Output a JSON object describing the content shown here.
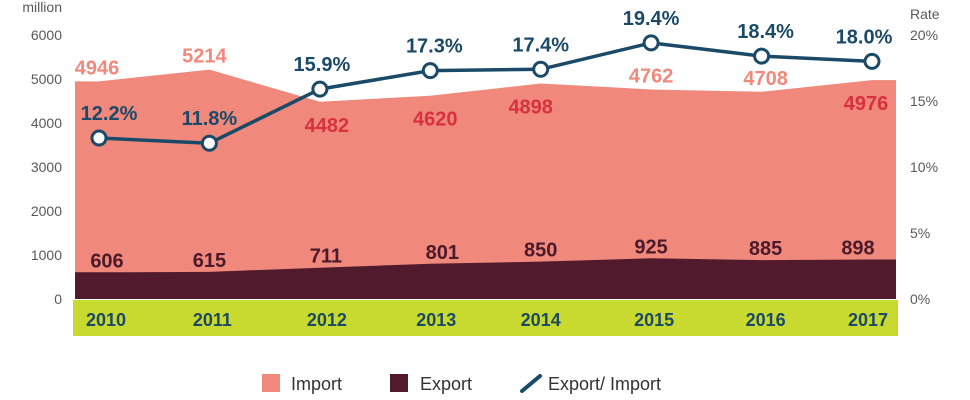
{
  "chart_data": {
    "type": "area",
    "categories": [
      "2010",
      "2011",
      "2012",
      "2013",
      "2014",
      "2015",
      "2016",
      "2017"
    ],
    "series": [
      {
        "name": "Import",
        "type": "area",
        "color": "#F0887C",
        "values": [
          4946,
          5214,
          4482,
          4620,
          4898,
          4762,
          4708,
          4976
        ]
      },
      {
        "name": "Export",
        "type": "area",
        "color": "#521A2D",
        "values": [
          606,
          615,
          711,
          801,
          850,
          925,
          885,
          898
        ]
      },
      {
        "name": "Export/ Import",
        "type": "line",
        "secondary_axis": true,
        "color": "#1A4A68",
        "values": [
          12.2,
          11.8,
          15.9,
          17.3,
          17.4,
          19.4,
          18.4,
          18.0
        ],
        "labels": [
          "12.2%",
          "11.8%",
          "15.9%",
          "17.3%",
          "17.4%",
          "19.4%",
          "18.4%",
          "18.0%"
        ]
      }
    ],
    "ylabel": "million",
    "y2label": "Rate",
    "ylim": [
      0,
      6000
    ],
    "y2lim": [
      0,
      20
    ],
    "yticks": [
      0,
      1000,
      2000,
      3000,
      4000,
      5000,
      6000
    ],
    "y2ticks": [
      0,
      5,
      10,
      15,
      20
    ],
    "y2tick_labels": [
      "0%",
      "5%",
      "10%",
      "15%",
      "20%"
    ],
    "grid": false,
    "legend": "bottom",
    "category_band_color": "#C8D92F"
  }
}
